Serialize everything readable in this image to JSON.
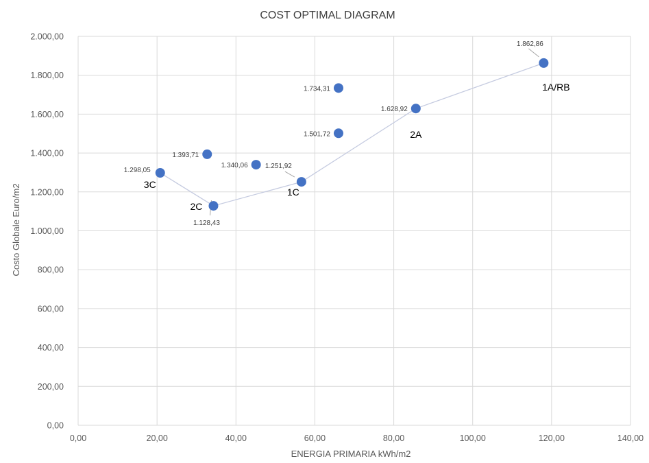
{
  "chart_data": {
    "type": "scatter",
    "title": "COST OPTIMAL DIAGRAM",
    "xlabel": "ENERGIA PRIMARIA kWh/m2",
    "ylabel": "Costo Globale Euro/m2",
    "xlim": [
      0,
      140
    ],
    "ylim": [
      0,
      2000
    ],
    "grid": true,
    "x_ticks": [
      "0,00",
      "20,00",
      "40,00",
      "60,00",
      "80,00",
      "100,00",
      "120,00",
      "140,00"
    ],
    "y_ticks": [
      "0,00",
      "200,00",
      "400,00",
      "600,00",
      "800,00",
      "1.000,00",
      "1.200,00",
      "1.400,00",
      "1.600,00",
      "1.800,00",
      "2.000,00"
    ],
    "points": [
      {
        "x": 20.8,
        "y": 1298.05,
        "value_label": "1.298,05",
        "name": "3C"
      },
      {
        "x": 34.3,
        "y": 1128.43,
        "value_label": "1.128,43",
        "name": "2C"
      },
      {
        "x": 56.6,
        "y": 1251.92,
        "value_label": "1.251,92",
        "name": "1C"
      },
      {
        "x": 85.6,
        "y": 1628.92,
        "value_label": "1.628,92",
        "name": "2A"
      },
      {
        "x": 118.0,
        "y": 1862.86,
        "value_label": "1.862,86",
        "name": "1A/RB"
      },
      {
        "x": 32.7,
        "y": 1393.71,
        "value_label": "1.393,71",
        "name": ""
      },
      {
        "x": 45.1,
        "y": 1340.06,
        "value_label": "1.340,06",
        "name": ""
      },
      {
        "x": 66.0,
        "y": 1734.31,
        "value_label": "1.734,31",
        "name": ""
      },
      {
        "x": 66.0,
        "y": 1501.72,
        "value_label": "1.501,72",
        "name": ""
      }
    ],
    "frontier_line": [
      {
        "x": 20.8,
        "y": 1298.05
      },
      {
        "x": 34.3,
        "y": 1128.43
      },
      {
        "x": 56.6,
        "y": 1251.92
      },
      {
        "x": 85.6,
        "y": 1628.92
      },
      {
        "x": 118.0,
        "y": 1862.86
      }
    ]
  }
}
